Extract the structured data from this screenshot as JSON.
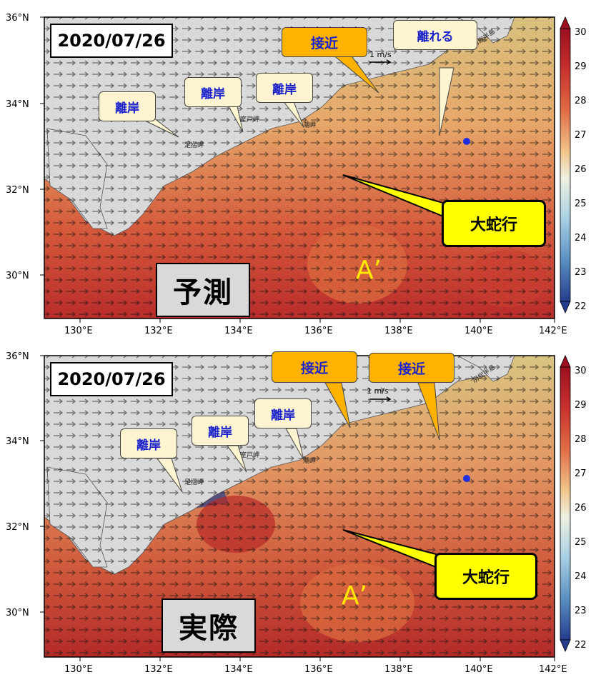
{
  "panels": [
    {
      "id": "forecast",
      "date": "2020/07/26",
      "mode_label": "予測",
      "callouts": [
        {
          "text": "離岸",
          "style": "light"
        },
        {
          "text": "離岸",
          "style": "light"
        },
        {
          "text": "離岸",
          "style": "light"
        },
        {
          "text": "接近",
          "style": "orange"
        },
        {
          "text": "離れる",
          "style": "light"
        }
      ],
      "meander_label": "大蛇行",
      "eddy_label": "A’"
    },
    {
      "id": "observed",
      "date": "2020/07/26",
      "mode_label": "実際",
      "callouts": [
        {
          "text": "離岸",
          "style": "light"
        },
        {
          "text": "離岸",
          "style": "light"
        },
        {
          "text": "離岸",
          "style": "light"
        },
        {
          "text": "接近",
          "style": "orange"
        },
        {
          "text": "接近",
          "style": "orange"
        }
      ],
      "meander_label": "大蛇行",
      "eddy_label": "A’"
    }
  ],
  "map": {
    "lon_ticks": [
      "130°E",
      "132°E",
      "134°E",
      "136°E",
      "138°E",
      "140°E",
      "142°E"
    ],
    "lat_ticks": [
      "30°N",
      "32°N",
      "34°N",
      "36°N"
    ],
    "reference_vector": "1 m/s",
    "place_labels": [
      "足摺岬",
      "室戸岬",
      "潮岬",
      "房総半島"
    ],
    "marker_color": "#1f2fe0"
  },
  "colorbar": {
    "ticks": [
      "30",
      "29",
      "28",
      "27",
      "26",
      "25",
      "24",
      "23",
      "22"
    ],
    "colors": [
      "#9b0f1f",
      "#c8312e",
      "#e06c45",
      "#eda46a",
      "#f1d49a",
      "#e9efe5",
      "#a7cfe3",
      "#5a8fc1",
      "#253c8e"
    ]
  }
}
